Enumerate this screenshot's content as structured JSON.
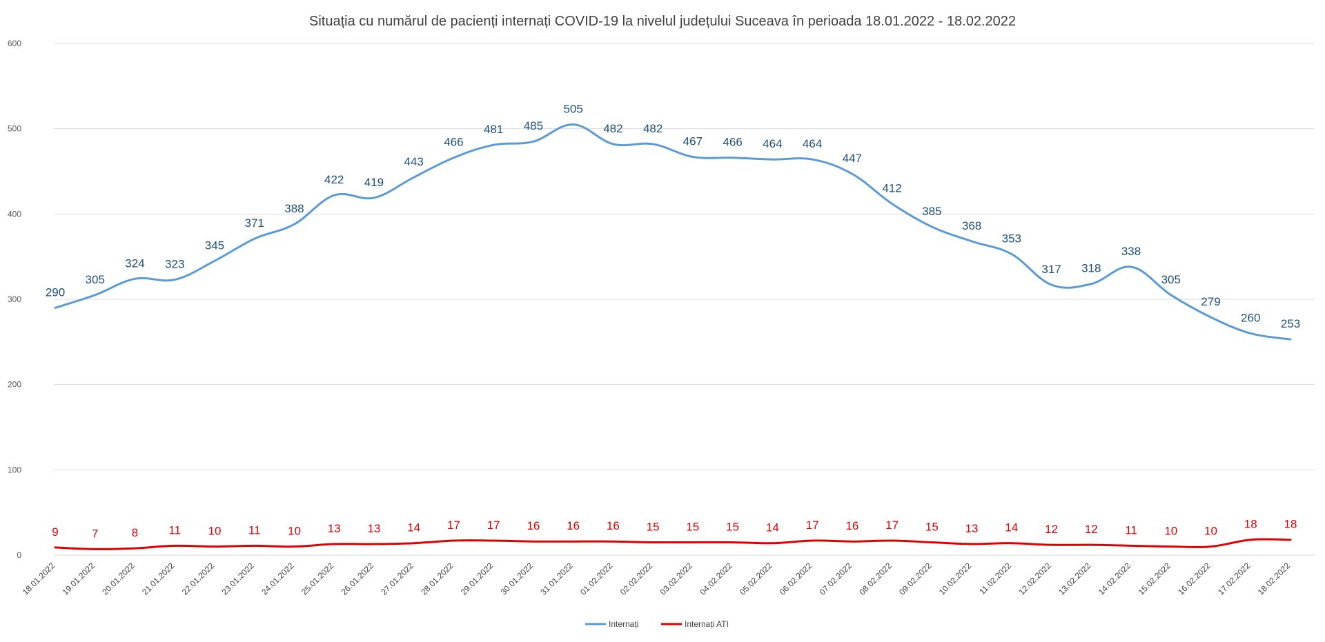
{
  "chart_data": {
    "type": "line",
    "title": "Situația cu numărul de pacienți internați COVID-19 la nivelul județului Suceava în perioada 18.01.2022 - 18.02.2022",
    "categories": [
      "18.01.2022",
      "19.01.2022",
      "20.01.2022",
      "21.01.2022",
      "22.01.2022",
      "23.01.2022",
      "24.01.2022",
      "25.01.2022",
      "26.01.2022",
      "27.01.2022",
      "28.01.2022",
      "29.01.2022",
      "30.01.2022",
      "31.01.2022",
      "01.02.2022",
      "02.02.2022",
      "03.02.2022",
      "04.02.2022",
      "05.02.2022",
      "06.02.2022",
      "07.02.2022",
      "08.02.2022",
      "09.02.2022",
      "10.02.2022",
      "11.02.2022",
      "12.02.2022",
      "13.02.2022",
      "14.02.2022",
      "15.02.2022",
      "16.02.2022",
      "17.02.2022",
      "18.02.2022"
    ],
    "series": [
      {
        "name": "Internați",
        "color": "#5b9bd5",
        "label_color": "#1f4e79",
        "values": [
          290,
          305,
          324,
          323,
          345,
          371,
          388,
          422,
          419,
          443,
          466,
          481,
          485,
          505,
          482,
          482,
          467,
          466,
          464,
          464,
          447,
          412,
          385,
          368,
          353,
          317,
          318,
          338,
          305,
          279,
          260,
          253
        ]
      },
      {
        "name": "Internați ATI",
        "color": "#e00000",
        "label_color": "#e00000",
        "values": [
          9,
          7,
          8,
          11,
          10,
          11,
          10,
          13,
          13,
          14,
          17,
          17,
          16,
          16,
          16,
          15,
          15,
          15,
          14,
          17,
          16,
          17,
          15,
          13,
          14,
          12,
          12,
          11,
          10,
          10,
          18,
          18
        ]
      }
    ],
    "yticks": [
      0,
      100,
      200,
      300,
      400,
      500,
      600
    ],
    "ylim": [
      0,
      600
    ],
    "grid": true,
    "legend_position": "bottom"
  }
}
